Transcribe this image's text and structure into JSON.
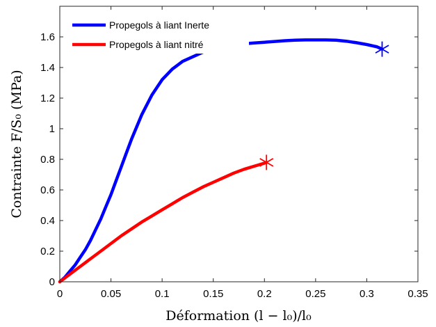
{
  "chart_data": {
    "type": "line",
    "xlabel": "Déformation (l − l₀)/l₀",
    "ylabel": "Contrainte F/S₀ (MPa)",
    "xlim": [
      0,
      0.35
    ],
    "ylim": [
      0,
      1.8
    ],
    "xticks": [
      "0",
      "0.05",
      "0.1",
      "0.15",
      "0.2",
      "0.25",
      "0.3",
      "0.35"
    ],
    "yticks": [
      "0",
      "0.2",
      "0.4",
      "0.6",
      "0.8",
      "1",
      "1.2",
      "1.4",
      "1.6"
    ],
    "grid": false,
    "legend_position": "top-left",
    "series": [
      {
        "name": "Propegols à liant Inerte",
        "color": "#0000ff",
        "marker_end": "star",
        "x": [
          0,
          0.005,
          0.01,
          0.015,
          0.02,
          0.025,
          0.03,
          0.035,
          0.04,
          0.045,
          0.05,
          0.055,
          0.06,
          0.065,
          0.07,
          0.08,
          0.09,
          0.1,
          0.11,
          0.12,
          0.13,
          0.14,
          0.15,
          0.16,
          0.17,
          0.18,
          0.19,
          0.2,
          0.21,
          0.22,
          0.23,
          0.24,
          0.25,
          0.26,
          0.27,
          0.28,
          0.29,
          0.3,
          0.31,
          0.315
        ],
        "y": [
          0,
          0.03,
          0.07,
          0.11,
          0.16,
          0.21,
          0.27,
          0.34,
          0.41,
          0.49,
          0.57,
          0.66,
          0.75,
          0.84,
          0.93,
          1.09,
          1.22,
          1.32,
          1.39,
          1.44,
          1.47,
          1.5,
          1.52,
          1.535,
          1.545,
          1.555,
          1.56,
          1.565,
          1.57,
          1.575,
          1.578,
          1.58,
          1.58,
          1.58,
          1.578,
          1.572,
          1.562,
          1.55,
          1.535,
          1.52
        ]
      },
      {
        "name": "Propegols à liant nitré",
        "color": "#ff0000",
        "marker_end": "star",
        "x": [
          0,
          0.01,
          0.02,
          0.03,
          0.04,
          0.05,
          0.06,
          0.07,
          0.08,
          0.09,
          0.1,
          0.11,
          0.12,
          0.13,
          0.14,
          0.15,
          0.16,
          0.17,
          0.18,
          0.19,
          0.2,
          0.202
        ],
        "y": [
          0,
          0.05,
          0.1,
          0.15,
          0.2,
          0.25,
          0.3,
          0.345,
          0.39,
          0.43,
          0.47,
          0.51,
          0.55,
          0.585,
          0.62,
          0.65,
          0.68,
          0.71,
          0.735,
          0.755,
          0.775,
          0.78
        ]
      }
    ]
  }
}
